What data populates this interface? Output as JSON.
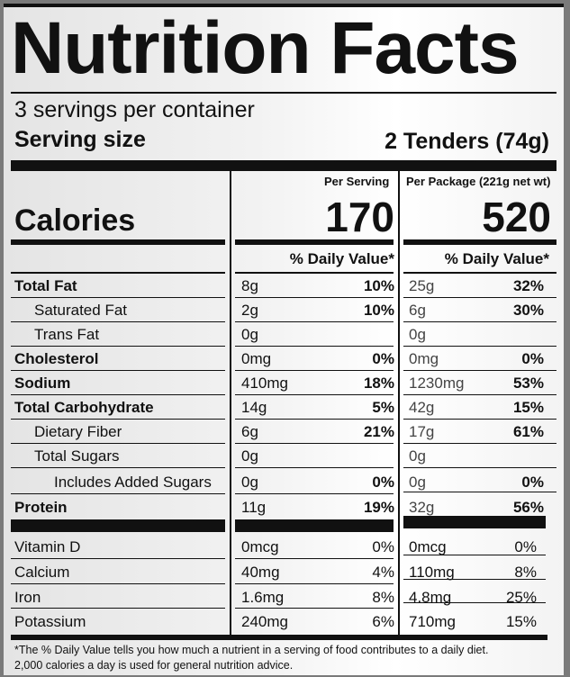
{
  "label": {
    "title": "Nutrition Facts",
    "servings_per_container": "3 servings per container",
    "serving_size_label": "Serving size",
    "serving_size_value": "2 Tenders (74g)",
    "per_serving_header": "Per Serving",
    "per_package_header": "Per Package (221g net wt)",
    "calories_label": "Calories",
    "calories_per_serving": "170",
    "calories_per_package": "520",
    "daily_value_header": "% Daily Value*",
    "nutrients": [
      {
        "name": "Total Fat",
        "s_amt": "8g",
        "s_dv": "10%",
        "p_amt": "25g",
        "p_dv": "32%"
      },
      {
        "name": "Saturated Fat",
        "s_amt": "2g",
        "s_dv": "10%",
        "p_amt": "6g",
        "p_dv": "30%"
      },
      {
        "name": "Trans Fat",
        "s_amt": "0g",
        "s_dv": "",
        "p_amt": "0g",
        "p_dv": ""
      },
      {
        "name": "Cholesterol",
        "s_amt": "0mg",
        "s_dv": "0%",
        "p_amt": "0mg",
        "p_dv": "0%"
      },
      {
        "name": "Sodium",
        "s_amt": "410mg",
        "s_dv": "18%",
        "p_amt": "1230mg",
        "p_dv": "53%"
      },
      {
        "name": "Total Carbohydrate",
        "s_amt": "14g",
        "s_dv": "5%",
        "p_amt": "42g",
        "p_dv": "15%"
      },
      {
        "name": "Dietary Fiber",
        "s_amt": "6g",
        "s_dv": "21%",
        "p_amt": "17g",
        "p_dv": "61%"
      },
      {
        "name": "Total Sugars",
        "s_amt": "0g",
        "s_dv": "",
        "p_amt": "0g",
        "p_dv": ""
      },
      {
        "name": "Includes Added Sugars",
        "s_amt": "0g",
        "s_dv": "0%",
        "p_amt": "0g",
        "p_dv": "0%"
      },
      {
        "name": "Protein",
        "s_amt": "11g",
        "s_dv": "19%",
        "p_amt": "32g",
        "p_dv": "56%"
      }
    ],
    "vitamins": [
      {
        "name": "Vitamin D",
        "s_amt": "0mcg",
        "s_dv": "0%",
        "p_amt": "0mcg",
        "p_dv": "0%"
      },
      {
        "name": "Calcium",
        "s_amt": "40mg",
        "s_dv": "4%",
        "p_amt": "110mg",
        "p_dv": "8%"
      },
      {
        "name": "Iron",
        "s_amt": "1.6mg",
        "s_dv": "8%",
        "p_amt": "4.8mg",
        "p_dv": "25%"
      },
      {
        "name": "Potassium",
        "s_amt": "240mg",
        "s_dv": "6%",
        "p_amt": "710mg",
        "p_dv": "15%"
      }
    ],
    "footnote_line1": "*The % Daily Value tells you how much a nutrient in a serving of food contributes to a daily diet.",
    "footnote_line2": "2,000 calories a day is used for general nutrition advice."
  }
}
